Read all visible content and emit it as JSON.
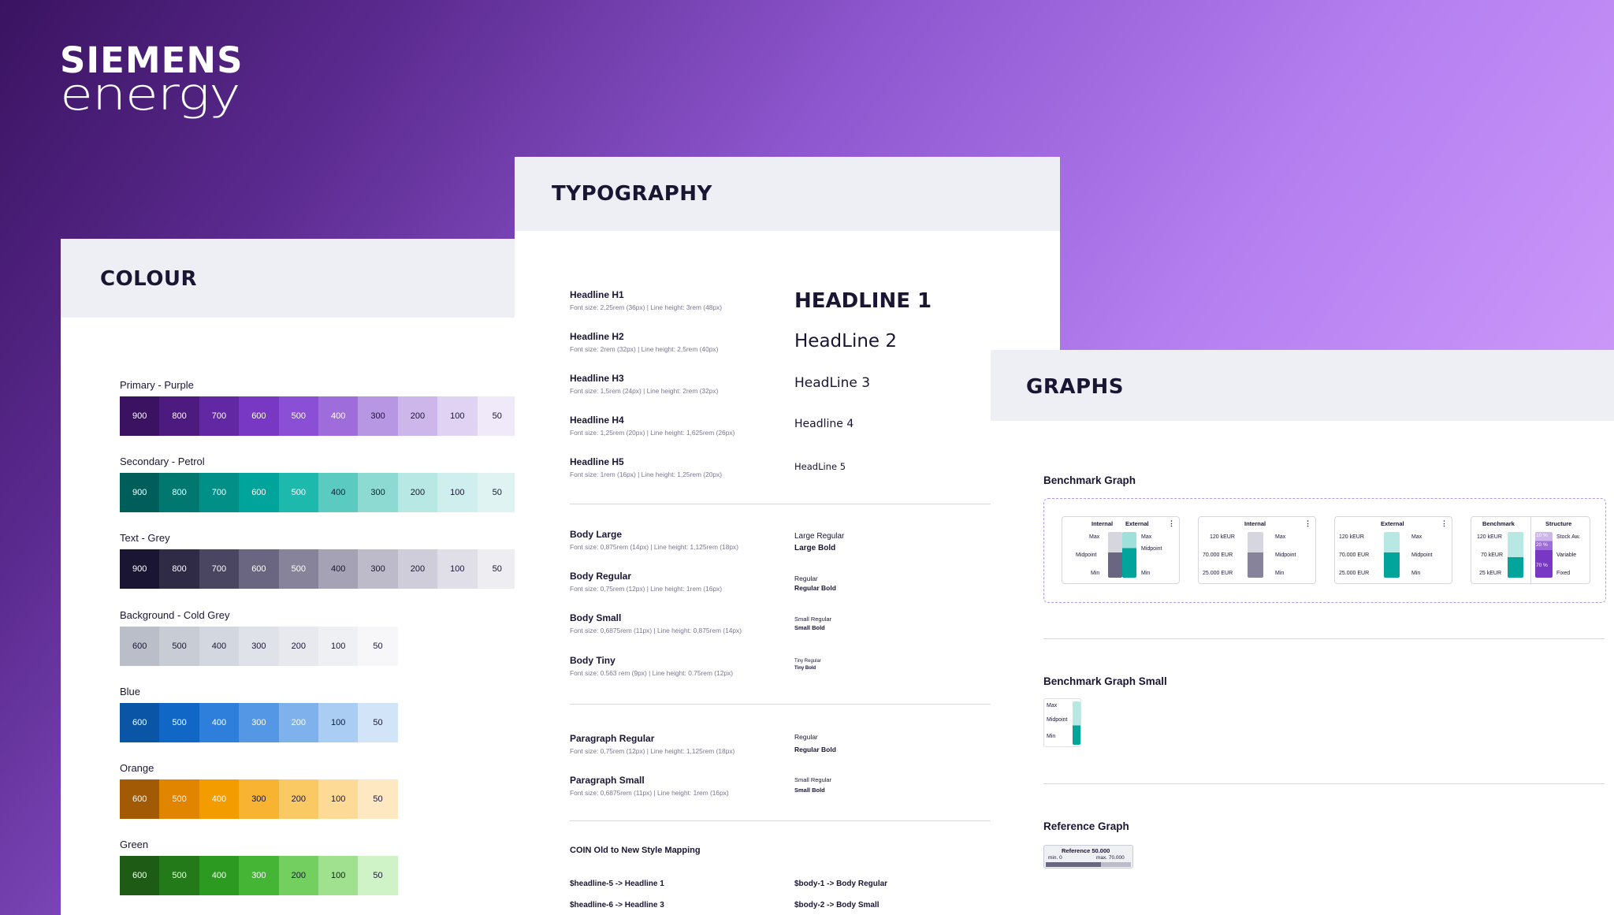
{
  "brand": {
    "line1": "SIEMENS",
    "line2": "energy"
  },
  "colour": {
    "title": "COLOUR",
    "rows": [
      {
        "label": "Primary - Purple",
        "swatches": [
          [
            "900",
            "#3b1262",
            "#fff"
          ],
          [
            "800",
            "#4d1a80",
            "#fff"
          ],
          [
            "700",
            "#6228a4",
            "#fff"
          ],
          [
            "600",
            "#7838c4",
            "#fff"
          ],
          [
            "500",
            "#8b4fd6",
            "#fff"
          ],
          [
            "400",
            "#9f6ddb",
            "#fff"
          ],
          [
            "300",
            "#b796e3",
            "#1b1534"
          ],
          [
            "200",
            "#cdb6ea",
            "#1b1534"
          ],
          [
            "100",
            "#e0d2f2",
            "#1b1534"
          ],
          [
            "50",
            "#f0e9f9",
            "#1b1534"
          ]
        ]
      },
      {
        "label": "Secondary - Petrol",
        "swatches": [
          [
            "900",
            "#005e5a",
            "#fff"
          ],
          [
            "800",
            "#00776f",
            "#fff"
          ],
          [
            "700",
            "#009087",
            "#fff"
          ],
          [
            "600",
            "#00a49a",
            "#fff"
          ],
          [
            "500",
            "#1eb9ad",
            "#fff"
          ],
          [
            "400",
            "#5bcbc2",
            "#1b1534"
          ],
          [
            "300",
            "#8ddad3",
            "#1b1534"
          ],
          [
            "200",
            "#b7e8e3",
            "#1b1534"
          ],
          [
            "100",
            "#cfeeee",
            "#1b1534"
          ],
          [
            "50",
            "#dff3f3",
            "#1b1534"
          ]
        ]
      },
      {
        "label": "Text - Grey",
        "swatches": [
          [
            "900",
            "#1b1534",
            "#fff"
          ],
          [
            "800",
            "#2f2a45",
            "#fff"
          ],
          [
            "700",
            "#4a4560",
            "#fff"
          ],
          [
            "600",
            "#6a6580",
            "#fff"
          ],
          [
            "500",
            "#86839a",
            "#fff"
          ],
          [
            "400",
            "#a5a2b5",
            "#1b1534"
          ],
          [
            "300",
            "#bdbbca",
            "#1b1534"
          ],
          [
            "200",
            "#cfcdd9",
            "#1b1534"
          ],
          [
            "100",
            "#e0dfe7",
            "#1b1534"
          ],
          [
            "50",
            "#eeedf2",
            "#1b1534"
          ]
        ]
      },
      {
        "label": "Background - Cold Grey",
        "swatches": [
          [
            "600",
            "#b9bec9",
            "#1b1534"
          ],
          [
            "500",
            "#c7ccd5",
            "#1b1534"
          ],
          [
            "400",
            "#d3d7df",
            "#1b1534"
          ],
          [
            "300",
            "#dfe2e8",
            "#1b1534"
          ],
          [
            "200",
            "#e7e9ee",
            "#1b1534"
          ],
          [
            "100",
            "#eff0f4",
            "#1b1534"
          ],
          [
            "50",
            "#f7f7fa",
            "#1b1534"
          ]
        ]
      },
      {
        "label": "Blue",
        "swatches": [
          [
            "600",
            "#0a55a5",
            "#fff"
          ],
          [
            "500",
            "#1167c5",
            "#fff"
          ],
          [
            "400",
            "#2e7fdb",
            "#fff"
          ],
          [
            "300",
            "#5497e4",
            "#fff"
          ],
          [
            "200",
            "#7fb2ec",
            "#fff"
          ],
          [
            "100",
            "#a9cdf3",
            "#1b1534"
          ],
          [
            "50",
            "#d2e5f8",
            "#1b1534"
          ]
        ]
      },
      {
        "label": "Orange",
        "swatches": [
          [
            "600",
            "#a25a05",
            "#fff"
          ],
          [
            "500",
            "#e18400",
            "#fff"
          ],
          [
            "400",
            "#f39c00",
            "#fff"
          ],
          [
            "300",
            "#f8b333",
            "#1b1534"
          ],
          [
            "200",
            "#fbc964",
            "#1b1534"
          ],
          [
            "100",
            "#fdda95",
            "#1b1534"
          ],
          [
            "50",
            "#fde8c2",
            "#1b1534"
          ]
        ]
      },
      {
        "label": "Green",
        "swatches": [
          [
            "600",
            "#1e5c16",
            "#fff"
          ],
          [
            "500",
            "#227a18",
            "#fff"
          ],
          [
            "400",
            "#2c9a20",
            "#fff"
          ],
          [
            "300",
            "#45b535",
            "#fff"
          ],
          [
            "200",
            "#73cf5f",
            "#1b1534"
          ],
          [
            "100",
            "#a0e18f",
            "#1b1534"
          ],
          [
            "50",
            "#cff2c6",
            "#1b1534"
          ]
        ]
      }
    ]
  },
  "typography": {
    "title": "TYPOGRAPHY",
    "rows": [
      {
        "name": "Headline H1",
        "meta": "Font size: 2,25rem (36px)  |  Line height: 3rem (48px)"
      },
      {
        "name": "Headline H2",
        "meta": "Font size: 2rem (32px)  |  Line height: 2,5rem (40px)"
      },
      {
        "name": "Headline H3",
        "meta": "Font size: 1,5rem (24px)  |  Line height: 2rem (32px)"
      },
      {
        "name": "Headline H4",
        "meta": "Font size: 1,25rem (20px)  |  Line height: 1,625rem (26px)"
      },
      {
        "name": "Headline H5",
        "meta": "Font size: 1rem (16px)  |  Line height: 1,25rem (20px)"
      },
      {
        "name": "Body Large",
        "meta": "Font size: 0,875rem (14px)  |  Line height: 1,125rem (18px)"
      },
      {
        "name": "Body Regular",
        "meta": "Font size: 0,75rem (12px)  |  Line height: 1rem (16px)"
      },
      {
        "name": "Body Small",
        "meta": "Font size: 0,6875rem (11px)  |  Line height: 0,875rem (14px)"
      },
      {
        "name": "Body Tiny",
        "meta": "Font size: 0.563 rem (9px)  |  Line height: 0.75rem (12px)"
      },
      {
        "name": "Paragraph Regular",
        "meta": "Font size: 0,75rem (12px)  |  Line height: 1,125rem (18px)"
      },
      {
        "name": "Paragraph Small",
        "meta": "Font size: 0,6875rem (11px)  |  Line height: 1rem (16px)"
      }
    ],
    "samples": {
      "h1": "HEADLINE 1",
      "h2": "HeadLine 2",
      "h3": "HeadLine 3",
      "h4": "Headline 4",
      "h5": "HeadLine 5",
      "large_regular": "Large Regular",
      "large_bold": "Large Bold",
      "regular": "Regular",
      "regular_bold": "Regular Bold",
      "small_regular": "Small Regular",
      "small_bold": "Small Bold",
      "tiny_regular": "Tiny Regular",
      "tiny_bold": "Tiny Bold",
      "p_regular": "Regular",
      "p_regular_bold": "Regular Bold",
      "p_small_regular": "Small Regular",
      "p_small_bold": "Small Bold"
    },
    "mapping": {
      "title": "COIN Old to New Style Mapping",
      "left": [
        "$headline-5 -> Headline 1",
        "$headline-6 -> Headline 3"
      ],
      "right": [
        "$body-1 -> Body Regular",
        "$body-2 -> Body Small"
      ]
    }
  },
  "graphs": {
    "title": "GRAPHS",
    "benchmark_title": "Benchmark Graph",
    "benchmark_small_title": "Benchmark Graph Small",
    "reference_title": "Reference Graph",
    "cards": [
      {
        "title_a": "Internal",
        "title_b": "External",
        "left": [
          "Max",
          "Midpoint",
          "Min"
        ],
        "right": [
          "Max",
          "Midpoint",
          "Min"
        ]
      },
      {
        "title": "Internal",
        "left": [
          "120 kEUR",
          "70.000 EUR",
          "25.000 EUR"
        ],
        "right": [
          "Max",
          "Midpoint",
          "Min"
        ]
      },
      {
        "title": "External",
        "left": [
          "120 kEUR",
          "70.000 EUR",
          "25.000 EUR"
        ],
        "right": [
          "Max",
          "Midpoint",
          "Min"
        ]
      },
      {
        "title_a": "Benchmark",
        "title_b": "Structure",
        "left": [
          "120 kEUR",
          "70 kEUR",
          "25 kEUR"
        ],
        "pcts": [
          "10 %",
          "20 %",
          "70 %"
        ],
        "right": [
          "Stock Aw.",
          "Variable",
          "Fixed"
        ]
      }
    ],
    "small": [
      "Max",
      "Midpoint",
      "Min"
    ],
    "reference": {
      "title": "Reference 50.000",
      "min": "min. 0",
      "max": "max. 70.000"
    },
    "kebab": "⋮"
  }
}
